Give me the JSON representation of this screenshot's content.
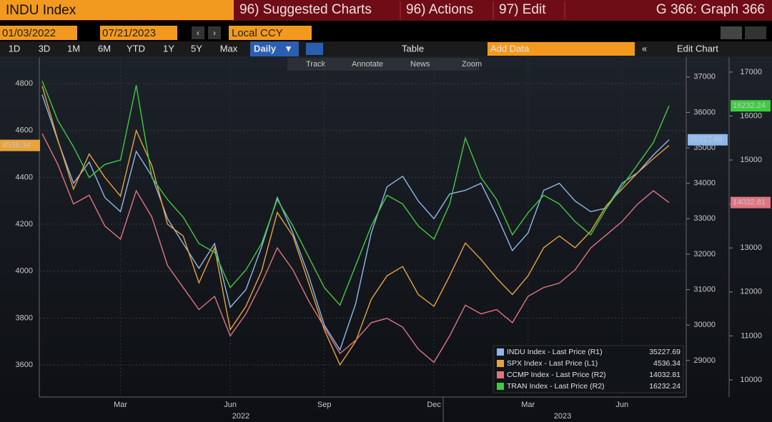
{
  "toolbar": {
    "security": "INDU Index",
    "menus": [
      "96) Suggested Charts",
      "96) Actions",
      "97) Edit"
    ],
    "graph_id": "G 366: Graph 366",
    "start_date": "01/03/2022",
    "end_date": "07/21/2023",
    "currency": "Local CCY",
    "periods": [
      "1D",
      "3D",
      "1M",
      "6M",
      "YTD",
      "1Y",
      "5Y",
      "Max"
    ],
    "frequency": "Daily",
    "table": "Table",
    "add_data": "Add Data",
    "edit_chart": "Edit Chart",
    "tools": [
      "Track",
      "Annotate",
      "News",
      "Zoom"
    ]
  },
  "chart_data": {
    "type": "line",
    "categories": [
      null,
      null,
      null,
      null,
      null,
      "Mar",
      null,
      null,
      null,
      null,
      null,
      null,
      "Jun",
      null,
      null,
      null,
      null,
      null,
      "Sep",
      null,
      null,
      null,
      null,
      null,
      null,
      "Dec",
      null,
      null,
      null,
      null,
      null,
      "Mar",
      null,
      null,
      null,
      null,
      null,
      "Jun",
      null,
      null,
      null
    ],
    "year_labels": [
      "2022",
      "2023"
    ],
    "ylim": [
      3463,
      4913
    ],
    "yticks": [
      3600,
      3800,
      4000,
      4200,
      4400,
      4600,
      4800
    ],
    "y2lim": [
      27970,
      37560
    ],
    "y2ticks": [
      29000,
      30000,
      31000,
      32000,
      33000,
      34000,
      35000,
      36000,
      37000
    ],
    "y3lim": [
      9610,
      17340
    ],
    "y3ticks": [
      10000,
      11000,
      12000,
      13000,
      14000,
      15000,
      16000,
      17000
    ],
    "grid": true,
    "legend": "bottom right",
    "series": [
      {
        "name": "INDU Index - Last Price (R1)",
        "color": "#8fb8ea",
        "axis": "y2",
        "values": [
          36500,
          35200,
          34000,
          34600,
          33600,
          33200,
          34900,
          34200,
          33000,
          32300,
          31600,
          32300,
          30500,
          31000,
          32200,
          33600,
          32600,
          31400,
          30000,
          29300,
          30600,
          32600,
          33900,
          34200,
          33500,
          33000,
          33700,
          33800,
          34000,
          33100,
          32100,
          32600,
          33800,
          34000,
          33500,
          33200,
          33300,
          34000,
          34300,
          34800,
          35227.69
        ]
      },
      {
        "name": "SPX Index - Last Price (L1)",
        "color": "#e8a33a",
        "axis": "y",
        "values": [
          4790,
          4560,
          4350,
          4500,
          4400,
          4320,
          4600,
          4450,
          4200,
          4150,
          3950,
          4100,
          3750,
          3850,
          4000,
          4250,
          4150,
          3950,
          3750,
          3600,
          3700,
          3880,
          3980,
          4020,
          3900,
          3850,
          3980,
          4120,
          4050,
          3970,
          3900,
          3980,
          4100,
          4150,
          4100,
          4170,
          4280,
          4350,
          4420,
          4480,
          4536.34
        ]
      },
      {
        "name": "CCMP Index - Last Price (R2)",
        "color": "#e07480",
        "axis": "y3",
        "values": [
          15600,
          14900,
          14000,
          14200,
          13500,
          13200,
          14300,
          13700,
          12600,
          12100,
          11600,
          11900,
          11000,
          11500,
          12200,
          13000,
          12500,
          11800,
          11200,
          10600,
          10900,
          11300,
          11400,
          11200,
          10700,
          10400,
          11000,
          11700,
          11500,
          11600,
          11300,
          11900,
          12100,
          12200,
          12500,
          13000,
          13300,
          13600,
          14000,
          14300,
          14032.81
        ]
      },
      {
        "name": "TRAN Index - Last Price (R2)",
        "color": "#3fcb3f",
        "axis": "y3",
        "values": [
          16800,
          15900,
          15300,
          14600,
          14900,
          15000,
          16700,
          14600,
          14100,
          13700,
          13100,
          12900,
          12100,
          12500,
          13100,
          14100,
          13500,
          12800,
          12100,
          11700,
          12600,
          13500,
          14200,
          14000,
          13500,
          13200,
          14000,
          15500,
          14600,
          14100,
          13300,
          13800,
          14200,
          14000,
          13600,
          13300,
          13900,
          14400,
          14900,
          15400,
          16232.24
        ]
      }
    ]
  }
}
